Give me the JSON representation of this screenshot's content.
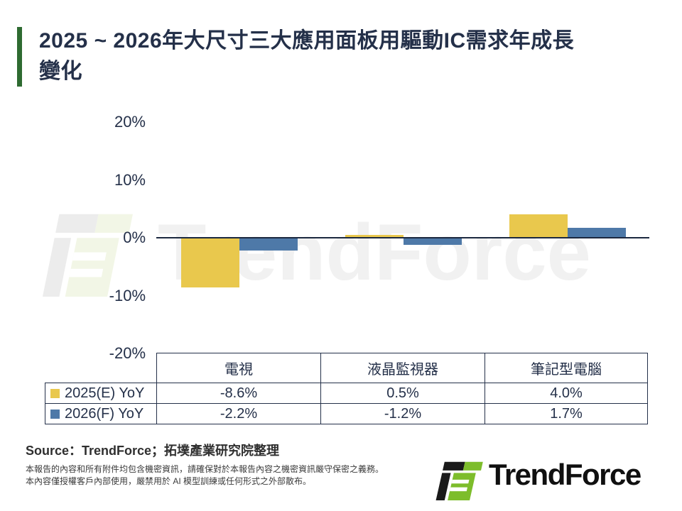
{
  "title": {
    "text": "2025 ~ 2026年大尺寸三大應用面板用驅動IC需求年成長變化",
    "lines": [
      "2025 ~ 2026年大尺寸三大應用面板用驅動IC需求年成長",
      "變化"
    ]
  },
  "chart_data": {
    "type": "bar",
    "categories": [
      "電視",
      "液晶監視器",
      "筆記型電腦"
    ],
    "series": [
      {
        "name": "2025(E) YoY",
        "color": "#E9C84D",
        "values": [
          -8.6,
          0.5,
          4.0
        ]
      },
      {
        "name": "2026(F) YoY",
        "color": "#4E79A8",
        "values": [
          -2.2,
          -1.2,
          1.7
        ]
      }
    ],
    "ylabel": "",
    "xlabel": "",
    "ylim": [
      -20,
      20
    ],
    "yticks": [
      "20%",
      "10%",
      "0%",
      "-10%",
      "-20%"
    ],
    "grid": false,
    "legend_position": "table-left-column"
  },
  "table": {
    "col_headers": [
      "電視",
      "液晶監視器",
      "筆記型電腦"
    ],
    "rows": [
      {
        "label": "2025(E) YoY",
        "swatch_color": "#E9C84D",
        "values": [
          "-8.6%",
          "0.5%",
          "4.0%"
        ]
      },
      {
        "label": "2026(F) YoY",
        "swatch_color": "#4E79A8",
        "values": [
          "-2.2%",
          "-1.2%",
          "1.7%"
        ]
      }
    ]
  },
  "source_line": "Source：TrendForce；拓墣產業研究院整理",
  "disclaimer": [
    "本報告的內容和所有附件均包含機密資訊，請確保對於本報告內容之機密資訊嚴守保密之義務。",
    "本內容僅授權客戶內部使用，嚴禁用於 AI 模型訓練或任何形式之外部散布。"
  ],
  "logo": {
    "text": "TrendForce"
  },
  "watermark": {
    "text": "TrendForce"
  },
  "colors": {
    "title_text": "#243049",
    "accent_bar_green": "#2E6B31",
    "series_2025_yellow": "#E9C84D",
    "series_2026_blue": "#4E79A8",
    "axis_line": "#1c2940",
    "table_border": "#243049",
    "logo_green": "#7DBD2B",
    "logo_black": "#1a1a1a",
    "watermark_gray": "#f1f1f1"
  }
}
